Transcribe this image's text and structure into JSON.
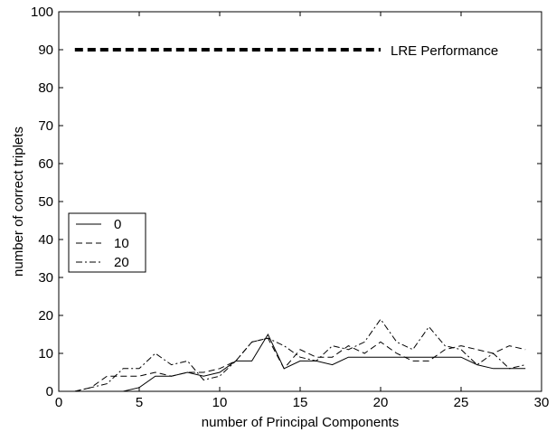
{
  "chart_data": {
    "type": "line",
    "title": "",
    "xlabel": "number of Principal Components",
    "ylabel": "number of correct triplets",
    "xlim": [
      0,
      30
    ],
    "ylim": [
      0,
      100
    ],
    "xticks": [
      0,
      5,
      10,
      15,
      20,
      25,
      30
    ],
    "yticks": [
      0,
      10,
      20,
      30,
      40,
      50,
      60,
      70,
      80,
      90,
      100
    ],
    "grid": false,
    "legend_placement": "left",
    "series": [
      {
        "name": "0",
        "style": "solid",
        "x": [
          1,
          2,
          3,
          4,
          5,
          6,
          7,
          8,
          9,
          10,
          11,
          12,
          13,
          14,
          15,
          16,
          17,
          18,
          19,
          20,
          21,
          22,
          23,
          24,
          25,
          26,
          27,
          28,
          29
        ],
        "y": [
          0,
          0,
          0,
          0,
          1,
          4,
          4,
          5,
          4,
          5,
          8,
          8,
          15,
          6,
          8,
          8,
          7,
          9,
          9,
          9,
          9,
          9,
          9,
          9,
          9,
          7,
          6,
          6,
          6
        ]
      },
      {
        "name": "10",
        "style": "dashed",
        "x": [
          1,
          2,
          3,
          4,
          5,
          6,
          7,
          8,
          9,
          10,
          11,
          12,
          13,
          14,
          15,
          16,
          17,
          18,
          19,
          20,
          21,
          22,
          23,
          24,
          25,
          26,
          27,
          28,
          29
        ],
        "y": [
          0,
          1,
          4,
          4,
          4,
          5,
          4,
          5,
          5,
          6,
          8,
          13,
          14,
          6,
          11,
          9,
          9,
          12,
          10,
          13,
          10,
          8,
          8,
          11,
          12,
          11,
          10,
          12,
          11
        ]
      },
      {
        "name": "20",
        "style": "dashdot",
        "x": [
          1,
          2,
          3,
          4,
          5,
          6,
          7,
          8,
          9,
          10,
          11,
          12,
          13,
          14,
          15,
          16,
          17,
          18,
          19,
          20,
          21,
          22,
          23,
          24,
          25,
          26,
          27,
          28,
          29
        ],
        "y": [
          0,
          1,
          2,
          6,
          6,
          10,
          7,
          8,
          3,
          4,
          8,
          13,
          14,
          12,
          9,
          8,
          12,
          11,
          13,
          19,
          13,
          11,
          17,
          12,
          11,
          7,
          10,
          6,
          7
        ]
      }
    ],
    "reference_line": {
      "label": "LRE Performance",
      "y": 90,
      "x_start": 1,
      "x_end": 20,
      "style": "thick-dashed"
    },
    "colors": {
      "line": "#000000",
      "background": "#ffffff"
    }
  }
}
